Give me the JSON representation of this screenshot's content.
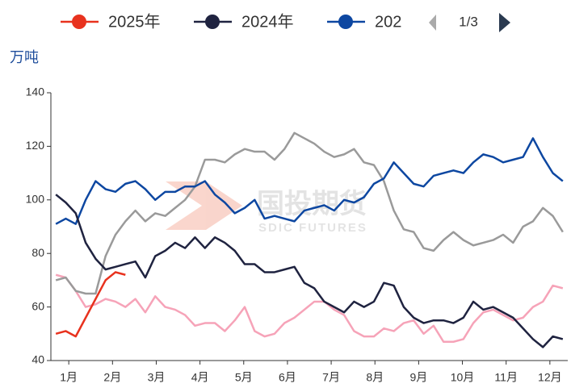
{
  "chart_data": {
    "type": "line",
    "y_label": "万吨",
    "legend_page": "1/3",
    "watermark": "国投期货",
    "watermark_sub": "SDIC FUTURES",
    "x": [
      1,
      2,
      3,
      4,
      5,
      6,
      7,
      8,
      9,
      10,
      11,
      12,
      13,
      14,
      15,
      16,
      17,
      18,
      19,
      20,
      21,
      22,
      23,
      24,
      25,
      26,
      27,
      28,
      29,
      30,
      31,
      32,
      33,
      34,
      35,
      36,
      37,
      38,
      39,
      40,
      41,
      42,
      43,
      44,
      45,
      46,
      47,
      48,
      49,
      50,
      51,
      52
    ],
    "xlim": [
      0.5,
      52.5
    ],
    "xticks": [
      {
        "value": 2.3,
        "label": "1月"
      },
      {
        "value": 6.7,
        "label": "2月"
      },
      {
        "value": 11.1,
        "label": "3月"
      },
      {
        "value": 15.5,
        "label": "4月"
      },
      {
        "value": 19.9,
        "label": "5月"
      },
      {
        "value": 24.3,
        "label": "6月"
      },
      {
        "value": 28.7,
        "label": "7月"
      },
      {
        "value": 33.1,
        "label": "8月"
      },
      {
        "value": 37.5,
        "label": "9月"
      },
      {
        "value": 41.9,
        "label": "10月"
      },
      {
        "value": 46.3,
        "label": "11月"
      },
      {
        "value": 50.7,
        "label": "12月"
      }
    ],
    "ylim": [
      40,
      140
    ],
    "yticks": [
      40,
      60,
      80,
      100,
      120,
      140
    ],
    "series": [
      {
        "color": "#f6a3b8",
        "values": [
          72,
          71,
          66,
          60,
          61,
          63,
          62,
          60,
          63,
          58,
          64,
          60,
          59,
          57,
          53,
          54,
          54,
          51,
          55,
          60,
          51,
          49,
          50,
          54,
          56,
          59,
          62,
          62,
          59,
          57,
          51,
          49,
          49,
          52,
          51,
          54,
          55,
          50,
          53,
          47,
          47,
          48,
          54,
          58,
          59,
          57,
          55,
          56,
          60,
          62,
          68,
          67
        ]
      },
      {
        "color": "#9a9a9a",
        "values": [
          70,
          71,
          66,
          65,
          65,
          79,
          87,
          92,
          96,
          92,
          95,
          94,
          97,
          100,
          105,
          115,
          115,
          114,
          117,
          119,
          118,
          118,
          115,
          119,
          125,
          123,
          121,
          118,
          116,
          117,
          119,
          114,
          113,
          107,
          96,
          89,
          88,
          82,
          81,
          85,
          88,
          85,
          83,
          84,
          85,
          87,
          84,
          90,
          92,
          97,
          94,
          88
        ]
      },
      {
        "name": "202",
        "color": "#0d47a1",
        "values": [
          91,
          93,
          91,
          100,
          107,
          104,
          103,
          106,
          107,
          104,
          100,
          103,
          103,
          105,
          105,
          107,
          102,
          99,
          95,
          97,
          100,
          93,
          94,
          93,
          92,
          96,
          97,
          98,
          96,
          100,
          99,
          101,
          106,
          108,
          114,
          110,
          106,
          105,
          109,
          110,
          111,
          110,
          114,
          117,
          116,
          114,
          115,
          116,
          123,
          116,
          110,
          107
        ]
      },
      {
        "name": "2024年",
        "color": "#1f2340",
        "values": [
          102,
          99,
          95,
          84,
          78,
          74,
          75,
          76,
          77,
          71,
          79,
          81,
          84,
          82,
          86,
          82,
          86,
          84,
          81,
          76,
          76,
          73,
          73,
          74,
          75,
          69,
          67,
          62,
          60,
          58,
          62,
          60,
          62,
          69,
          68,
          60,
          56,
          54,
          55,
          55,
          54,
          56,
          62,
          59,
          60,
          58,
          56,
          52,
          48,
          45,
          49,
          48
        ]
      },
      {
        "name": "2025年",
        "color": "#e8321e",
        "values": [
          50,
          51,
          49,
          56,
          63,
          70,
          73,
          72,
          null,
          null,
          null,
          null,
          null,
          null,
          null,
          null,
          null,
          null,
          null,
          null,
          null,
          null,
          null,
          null,
          null,
          null,
          null,
          null,
          null,
          null,
          null,
          null,
          null,
          null,
          null,
          null,
          null,
          null,
          null,
          null,
          null,
          null,
          null,
          null,
          null,
          null,
          null,
          null,
          null,
          null,
          null,
          null
        ]
      }
    ],
    "legend_order": [
      4,
      3,
      2
    ]
  }
}
